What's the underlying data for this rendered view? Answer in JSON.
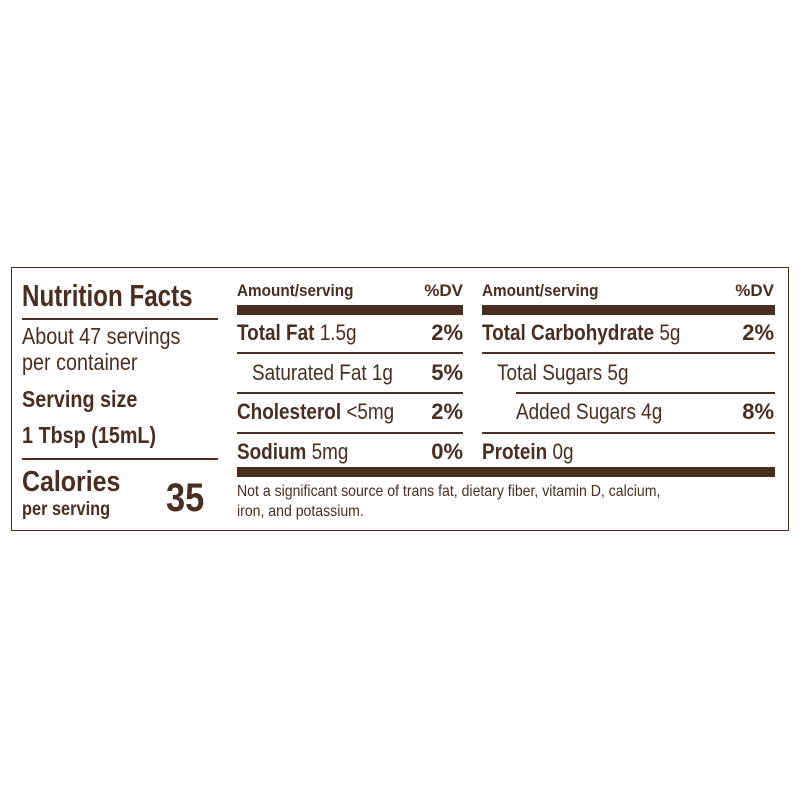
{
  "label": {
    "title": "Nutrition Facts",
    "servings": [
      "About 47 servings",
      "per container"
    ],
    "serving_size_label": "Serving size",
    "serving_size_value": "1 Tbsp (15mL)",
    "calories_label": "Calories",
    "calories_sub": "per serving",
    "calories_value": "35",
    "col_header": {
      "amount": "Amount/serving",
      "dv": "%DV"
    },
    "left_rows": [
      {
        "name": "Total Fat",
        "amount": "1.5g",
        "dv": "2%"
      },
      {
        "name": "Saturated Fat 1g",
        "amount": "",
        "dv": "5%"
      },
      {
        "name": "Cholesterol",
        "amount": "<5mg",
        "dv": "2%"
      },
      {
        "name": "Sodium",
        "amount": "5mg",
        "dv": "0%"
      }
    ],
    "right_rows": [
      {
        "name": "Total Carbohydrate",
        "amount": "5g",
        "dv": "2%"
      },
      {
        "name": "Total Sugars 5g",
        "amount": "",
        "dv": ""
      },
      {
        "name": "Added Sugars 4g",
        "amount": "",
        "dv": "8%"
      },
      {
        "name": "Protein",
        "amount": "0g",
        "dv": ""
      }
    ],
    "footnote": [
      "Not a significant source of trans fat, dietary fiber, vitamin D, calcium,",
      "iron, and potassium."
    ]
  },
  "colors": {
    "ink": "#4b2e22"
  }
}
